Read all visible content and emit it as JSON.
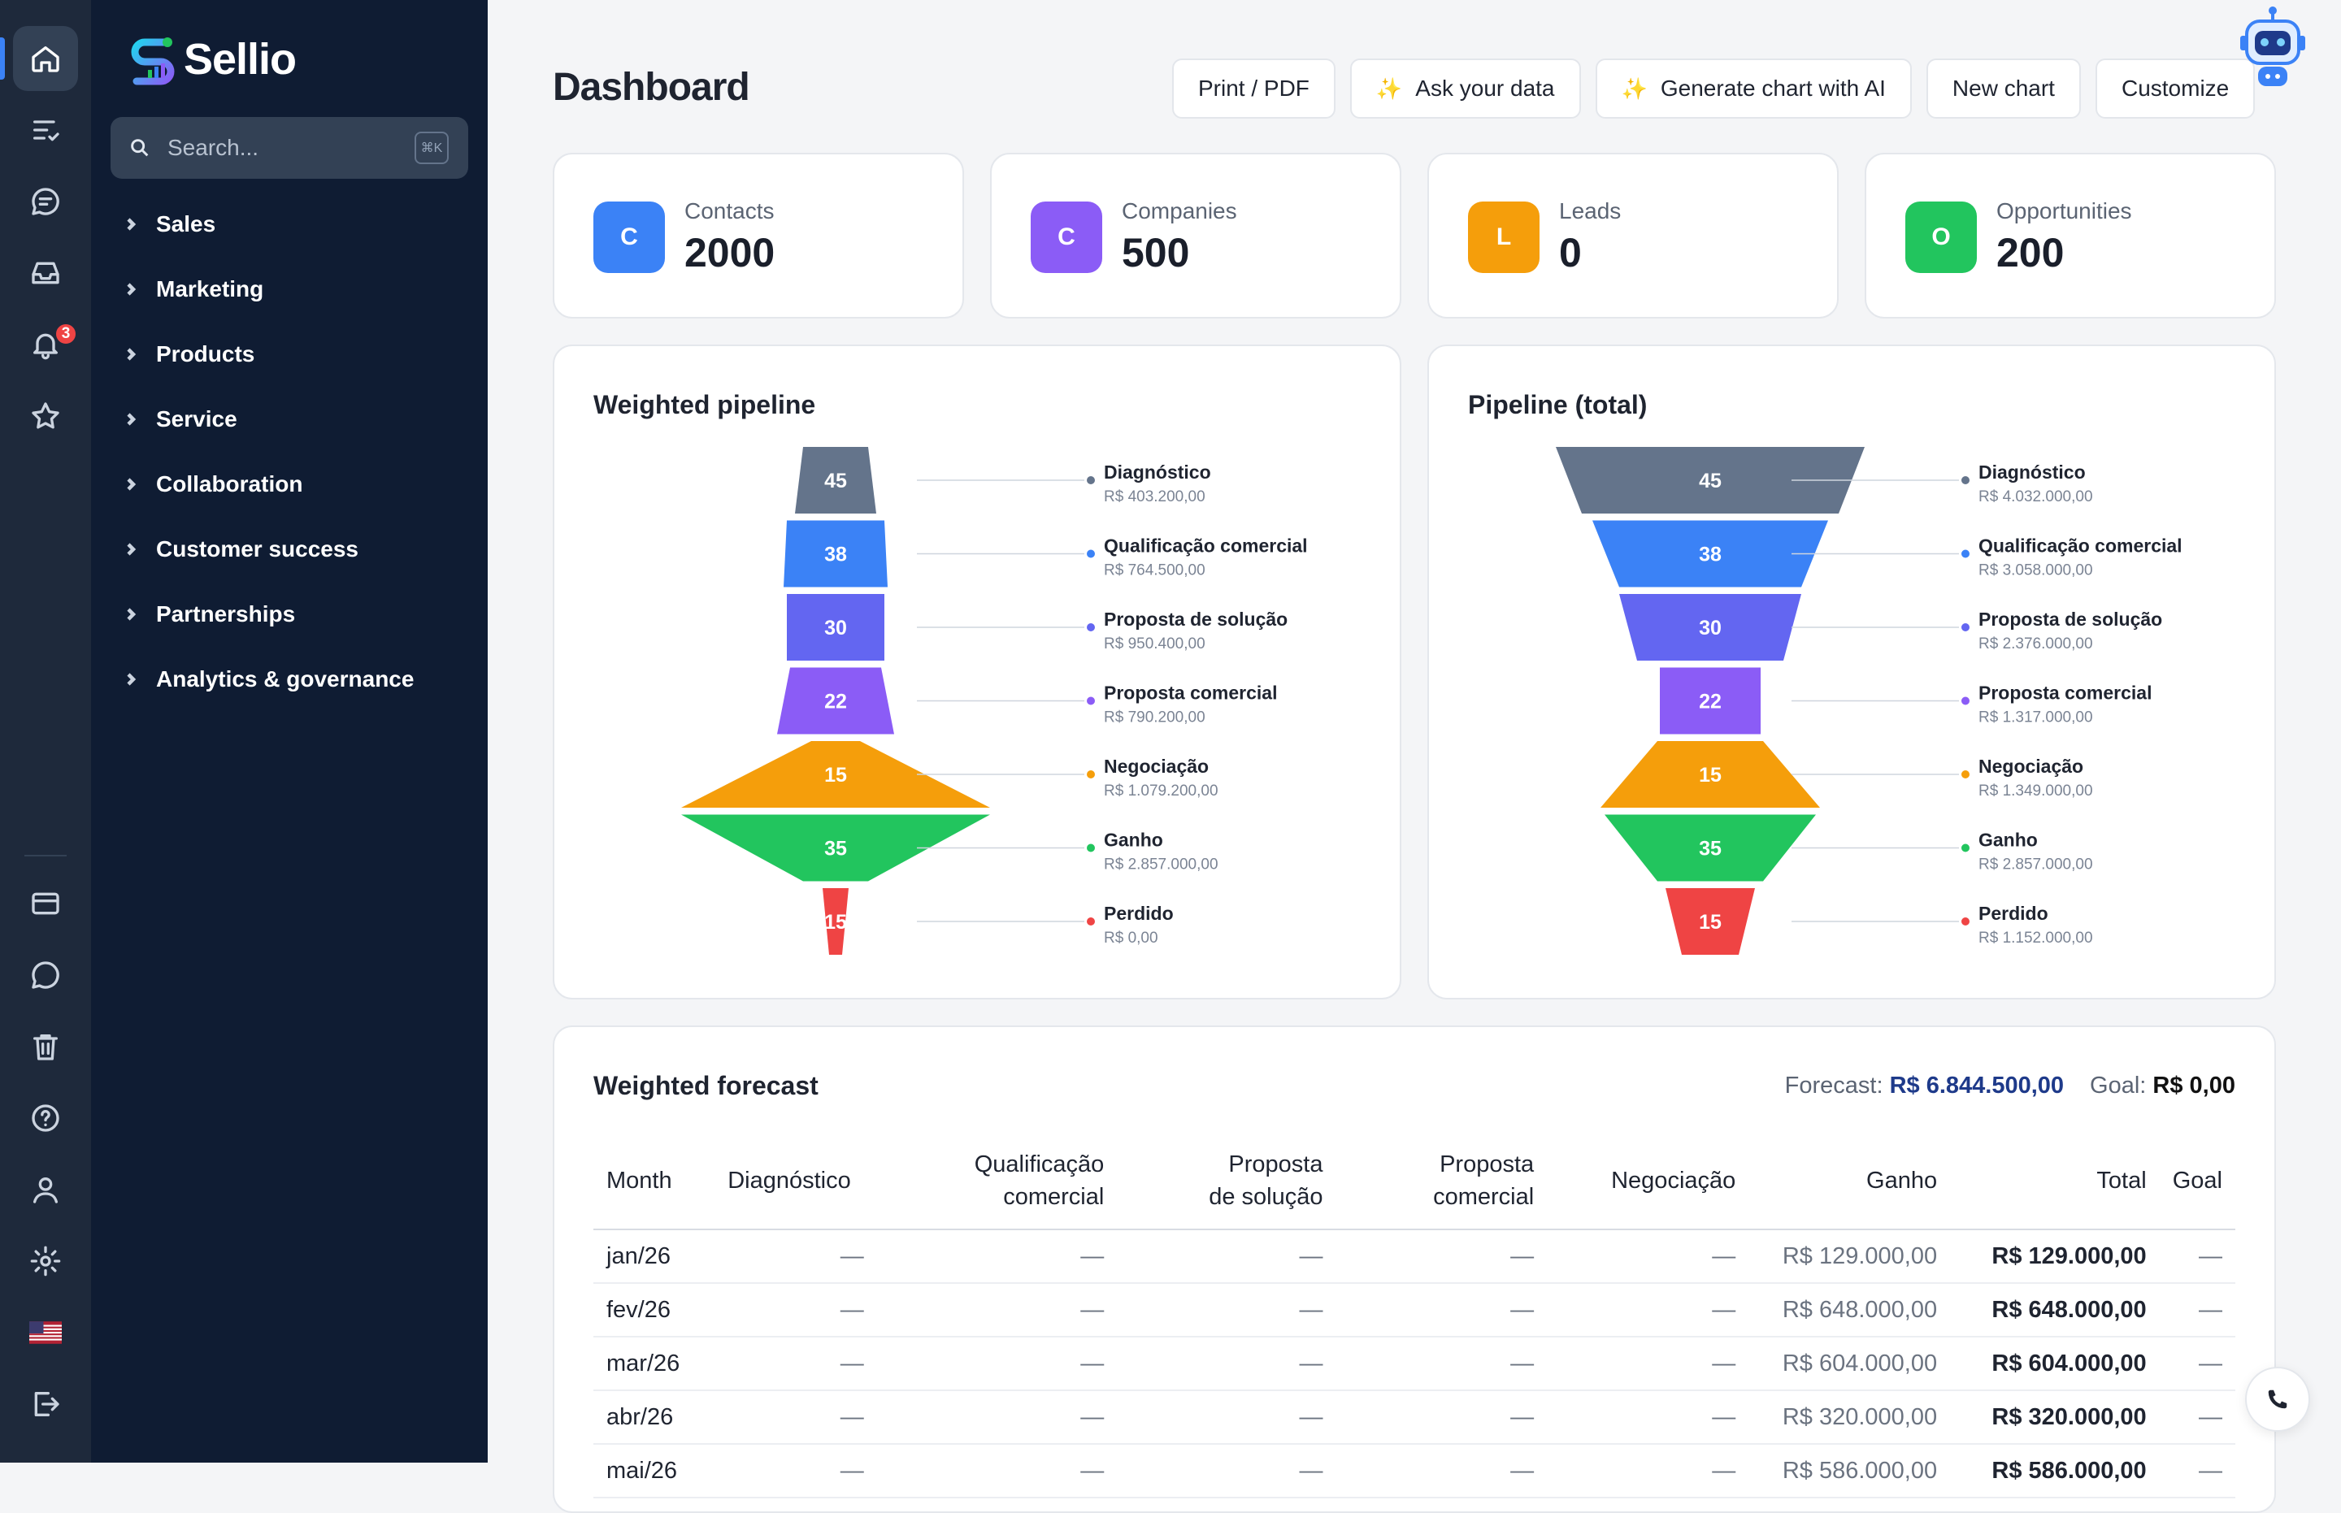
{
  "app": {
    "name": "Sellio"
  },
  "rail": {
    "notification_count": "3"
  },
  "search": {
    "placeholder": "Search...",
    "shortcut": "⌘K"
  },
  "nav": {
    "items": [
      {
        "label": "Sales"
      },
      {
        "label": "Marketing"
      },
      {
        "label": "Products"
      },
      {
        "label": "Service"
      },
      {
        "label": "Collaboration"
      },
      {
        "label": "Customer success"
      },
      {
        "label": "Partnerships"
      },
      {
        "label": "Analytics & governance"
      }
    ]
  },
  "page": {
    "title": "Dashboard"
  },
  "toolbar": {
    "print": "Print / PDF",
    "ask": "Ask your data",
    "generate": "Generate chart with AI",
    "new_chart": "New chart",
    "customize": "Customize"
  },
  "stats": [
    {
      "letter": "C",
      "label": "Contacts",
      "value": "2000",
      "color": "#3b82f6"
    },
    {
      "letter": "C",
      "label": "Companies",
      "value": "500",
      "color": "#8b5cf6"
    },
    {
      "letter": "L",
      "label": "Leads",
      "value": "0",
      "color": "#f59e0b"
    },
    {
      "letter": "O",
      "label": "Opportunities",
      "value": "200",
      "color": "#22c55e"
    }
  ],
  "funnels": {
    "weighted": {
      "title": "Weighted pipeline"
    },
    "total": {
      "title": "Pipeline (total)"
    }
  },
  "chart_data": [
    {
      "type": "funnel",
      "title": "Weighted pipeline",
      "stages": [
        {
          "name": "Diagnóstico",
          "count": 45,
          "amount": "R$ 403.200,00",
          "color": "#64748b"
        },
        {
          "name": "Qualificação comercial",
          "count": 38,
          "amount": "R$ 764.500,00",
          "color": "#3b82f6"
        },
        {
          "name": "Proposta de solução",
          "count": 30,
          "amount": "R$ 950.400,00",
          "color": "#6366f1"
        },
        {
          "name": "Proposta comercial",
          "count": 22,
          "amount": "R$ 790.200,00",
          "color": "#8b5cf6"
        },
        {
          "name": "Negociação",
          "count": 15,
          "amount": "R$ 1.079.200,00",
          "color": "#f59e0b"
        },
        {
          "name": "Ganho",
          "count": 35,
          "amount": "R$ 2.857.000,00",
          "color": "#22c55e"
        },
        {
          "name": "Perdido",
          "count": 15,
          "amount": "R$ 0,00",
          "color": "#ef4444"
        }
      ]
    },
    {
      "type": "funnel",
      "title": "Pipeline (total)",
      "stages": [
        {
          "name": "Diagnóstico",
          "count": 45,
          "amount": "R$ 4.032.000,00",
          "color": "#64748b"
        },
        {
          "name": "Qualificação comercial",
          "count": 38,
          "amount": "R$ 3.058.000,00",
          "color": "#3b82f6"
        },
        {
          "name": "Proposta de solução",
          "count": 30,
          "amount": "R$ 2.376.000,00",
          "color": "#6366f1"
        },
        {
          "name": "Proposta comercial",
          "count": 22,
          "amount": "R$ 1.317.000,00",
          "color": "#8b5cf6"
        },
        {
          "name": "Negociação",
          "count": 15,
          "amount": "R$ 1.349.000,00",
          "color": "#f59e0b"
        },
        {
          "name": "Ganho",
          "count": 35,
          "amount": "R$ 2.857.000,00",
          "color": "#22c55e"
        },
        {
          "name": "Perdido",
          "count": 15,
          "amount": "R$ 1.152.000,00",
          "color": "#ef4444"
        }
      ]
    }
  ],
  "forecast": {
    "title": "Weighted forecast",
    "forecast_label": "Forecast:",
    "forecast_value": "R$ 6.844.500,00",
    "goal_label": "Goal:",
    "goal_value": "R$ 0,00",
    "columns": [
      "Month",
      "Diagnóstico",
      "Qualificação comercial",
      "Proposta de solução",
      "Proposta comercial",
      "Negociação",
      "Ganho",
      "Total",
      "Goal"
    ],
    "rows": [
      [
        "jan/26",
        "—",
        "—",
        "—",
        "—",
        "—",
        "R$ 129.000,00",
        "R$ 129.000,00",
        "—"
      ],
      [
        "fev/26",
        "—",
        "—",
        "—",
        "—",
        "—",
        "R$ 648.000,00",
        "R$ 648.000,00",
        "—"
      ],
      [
        "mar/26",
        "—",
        "—",
        "—",
        "—",
        "—",
        "R$ 604.000,00",
        "R$ 604.000,00",
        "—"
      ],
      [
        "abr/26",
        "—",
        "—",
        "—",
        "—",
        "—",
        "R$ 320.000,00",
        "R$ 320.000,00",
        "—"
      ],
      [
        "mai/26",
        "—",
        "—",
        "—",
        "—",
        "—",
        "R$ 586.000,00",
        "R$ 586.000,00",
        "—"
      ]
    ]
  }
}
